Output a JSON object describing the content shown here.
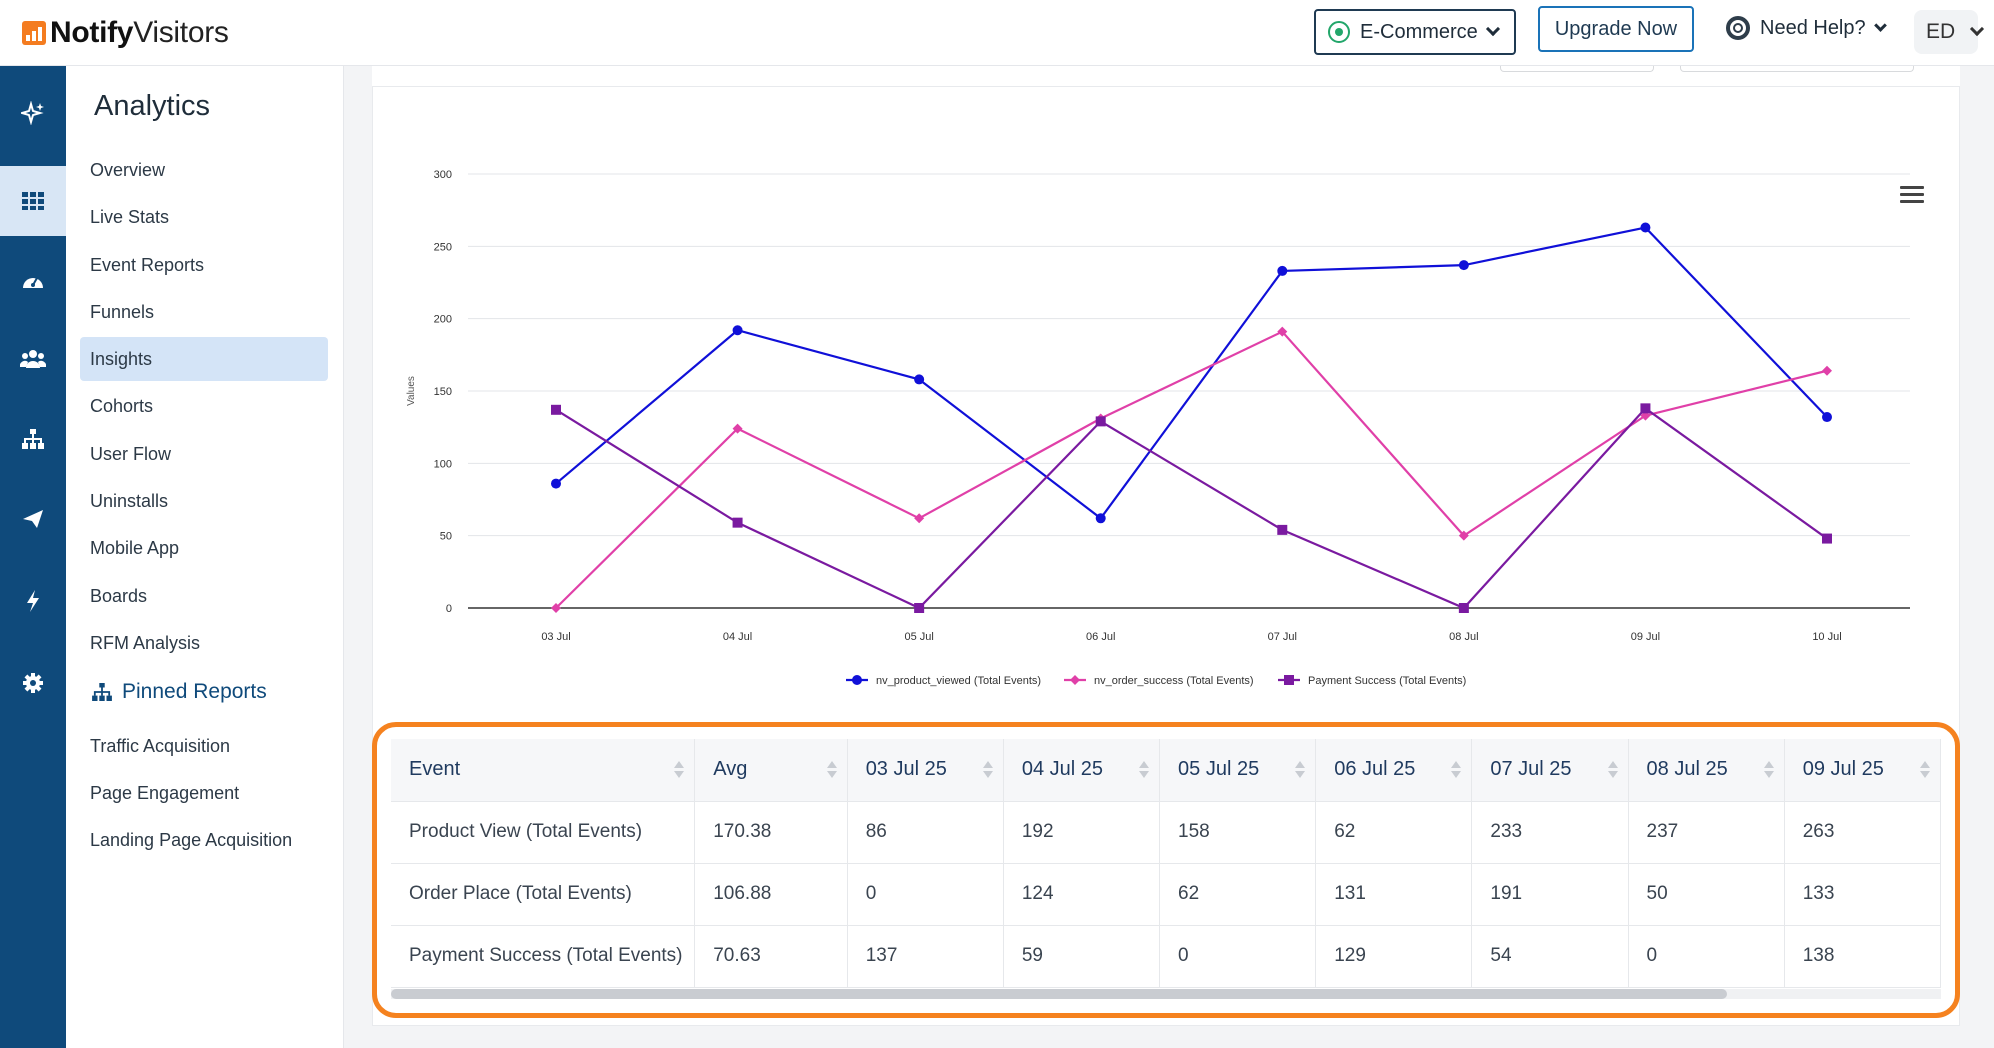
{
  "brand": {
    "name_bold": "Notify",
    "name_rest": "Visitors"
  },
  "header": {
    "store": "E-Commerce",
    "upgrade": "Upgrade Now",
    "help": "Need Help?",
    "avatar": "ED"
  },
  "rail": {
    "icons": [
      "sparkle-icon",
      "grid-icon",
      "dashboard-icon",
      "users-icon",
      "sitemap-icon",
      "send-icon",
      "bolt-icon",
      "gear-icon"
    ]
  },
  "sidebar": {
    "title": "Analytics",
    "items": [
      {
        "label": "Overview"
      },
      {
        "label": "Live Stats"
      },
      {
        "label": "Event Reports"
      },
      {
        "label": "Funnels"
      },
      {
        "label": "Insights",
        "active": true
      },
      {
        "label": "Cohorts"
      },
      {
        "label": "User Flow"
      },
      {
        "label": "Uninstalls"
      },
      {
        "label": "Mobile App"
      },
      {
        "label": "Boards"
      },
      {
        "label": "RFM Analysis"
      }
    ],
    "pinned_title": "Pinned Reports",
    "pinned_items": [
      {
        "label": "Traffic Acquisition"
      },
      {
        "label": "Page Engagement"
      },
      {
        "label": "Landing Page Acquisition"
      }
    ]
  },
  "chart_data": {
    "type": "line",
    "categories": [
      "03 Jul",
      "04 Jul",
      "05 Jul",
      "06 Jul",
      "07 Jul",
      "08 Jul",
      "09 Jul",
      "10 Jul"
    ],
    "ylabel": "Values",
    "ylim": [
      0,
      300
    ],
    "yticks": [
      "0",
      "50",
      "100",
      "150",
      "200",
      "250",
      "300"
    ],
    "grid": true,
    "legend_position": "bottom",
    "series": [
      {
        "name": "nv_product_viewed (Total Events)",
        "color": "#1010d8",
        "marker": "circle",
        "values": [
          86,
          192,
          158,
          62,
          233,
          237,
          263,
          132
        ]
      },
      {
        "name": "nv_order_success (Total Events)",
        "color": "#e040a8",
        "marker": "diamond",
        "values": [
          0,
          124,
          62,
          131,
          191,
          50,
          133,
          164
        ]
      },
      {
        "name": "Payment Success (Total Events)",
        "color": "#7a1aa0",
        "marker": "square",
        "values": [
          137,
          59,
          0,
          129,
          54,
          0,
          138,
          48
        ]
      }
    ]
  },
  "table": {
    "headers": [
      "Event",
      "Avg",
      "03 Jul 25",
      "04 Jul 25",
      "05 Jul 25",
      "06 Jul 25",
      "07 Jul 25",
      "08 Jul 25",
      "09 Jul 25"
    ],
    "rows": [
      [
        "Product View (Total Events)",
        "170.38",
        "86",
        "192",
        "158",
        "62",
        "233",
        "237",
        "263"
      ],
      [
        "Order Place (Total Events)",
        "106.88",
        "0",
        "124",
        "62",
        "131",
        "191",
        "50",
        "133"
      ],
      [
        "Payment Success (Total Events)",
        "70.63",
        "137",
        "59",
        "0",
        "129",
        "54",
        "0",
        "138"
      ]
    ]
  }
}
